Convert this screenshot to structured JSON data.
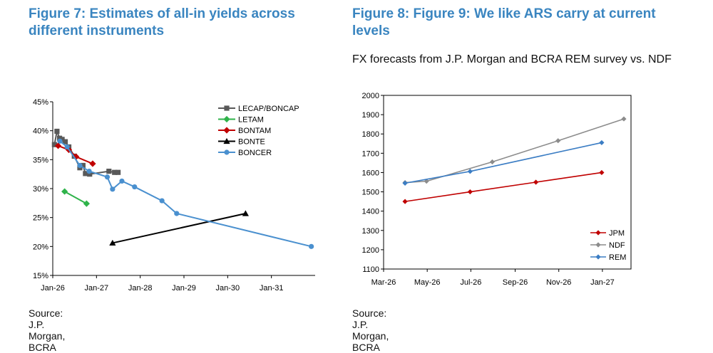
{
  "figures": [
    {
      "title": "Figure 7: Estimates of all-in yields across different instruments",
      "subtitle": "",
      "source": "Source: J.P. Morgan, BCRA"
    },
    {
      "title": "Figure 8: Figure 9: We like ARS carry at current levels",
      "subtitle": "FX forecasts from J.P. Morgan and BCRA REM survey vs. NDF",
      "source": "Source: J.P. Morgan, BCRA"
    }
  ],
  "chart_data": [
    {
      "type": "scatter",
      "title": "",
      "xlabel": "",
      "ylabel": "",
      "x_ticks": [
        "Jan-26",
        "Jan-27",
        "Jan-28",
        "Jan-29",
        "Jan-30",
        "Jan-31"
      ],
      "y_ticks": [
        "15%",
        "20%",
        "25%",
        "30%",
        "35%",
        "40%",
        "45%"
      ],
      "ylim": [
        15,
        45
      ],
      "xlim": [
        "Jan-26",
        "Jan-32"
      ],
      "grid": false,
      "legend_position": "top-right",
      "series": [
        {
          "name": "LECAP/BONCAP",
          "color": "#595959",
          "marker": "square",
          "points": [
            {
              "x": "2026-01-15",
              "y": 37.6
            },
            {
              "x": "2026-02-05",
              "y": 39.9
            },
            {
              "x": "2026-02-27",
              "y": 38.7
            },
            {
              "x": "2026-03-20",
              "y": 38.5
            },
            {
              "x": "2026-04-15",
              "y": 38.1
            },
            {
              "x": "2026-05-15",
              "y": 37.2
            },
            {
              "x": "2026-06-30",
              "y": 35.6
            },
            {
              "x": "2026-08-15",
              "y": 33.6
            },
            {
              "x": "2026-09-10",
              "y": 34.0
            },
            {
              "x": "2026-10-01",
              "y": 32.6
            },
            {
              "x": "2026-11-05",
              "y": 32.5
            },
            {
              "x": "2027-04-15",
              "y": 33.0
            },
            {
              "x": "2027-06-01",
              "y": 32.8
            },
            {
              "x": "2027-06-30",
              "y": 32.8
            }
          ]
        },
        {
          "name": "LETAM",
          "color": "#2fb34a",
          "marker": "diamond",
          "points": [
            {
              "x": "2026-04-10",
              "y": 29.5
            },
            {
              "x": "2026-10-10",
              "y": 27.4
            }
          ]
        },
        {
          "name": "BONTAM",
          "color": "#c00000",
          "marker": "diamond",
          "points": [
            {
              "x": "2026-02-15",
              "y": 37.4
            },
            {
              "x": "2026-05-15",
              "y": 36.7
            },
            {
              "x": "2026-07-15",
              "y": 35.5
            },
            {
              "x": "2026-11-30",
              "y": 34.3
            }
          ]
        },
        {
          "name": "BONTE",
          "color": "#000000",
          "marker": "triangle",
          "points": [
            {
              "x": "2027-05-15",
              "y": 20.6
            },
            {
              "x": "2030-05-30",
              "y": 25.7
            }
          ]
        },
        {
          "name": "BONCER",
          "color": "#4a90cf",
          "marker": "circle",
          "points": [
            {
              "x": "2026-03-01",
              "y": 38.2
            },
            {
              "x": "2026-05-01",
              "y": 37.2
            },
            {
              "x": "2026-08-15",
              "y": 34.0
            },
            {
              "x": "2026-11-01",
              "y": 33.0
            },
            {
              "x": "2027-04-01",
              "y": 32.0
            },
            {
              "x": "2027-05-15",
              "y": 29.9
            },
            {
              "x": "2027-08-01",
              "y": 31.3
            },
            {
              "x": "2027-11-15",
              "y": 30.3
            },
            {
              "x": "2028-07-01",
              "y": 27.9
            },
            {
              "x": "2028-11-01",
              "y": 25.7
            },
            {
              "x": "2031-11-30",
              "y": 20.0
            }
          ]
        }
      ]
    },
    {
      "type": "line",
      "title": "",
      "xlabel": "",
      "ylabel": "",
      "x_ticks": [
        "Mar-26",
        "May-26",
        "Jul-26",
        "Sep-26",
        "Nov-26",
        "Jan-27"
      ],
      "y_ticks": [
        "1100",
        "1200",
        "1300",
        "1400",
        "1500",
        "1600",
        "1700",
        "1800",
        "1900",
        "2000"
      ],
      "ylim": [
        1100,
        2000
      ],
      "xlim": [
        "2026-03-01",
        "2027-02-10"
      ],
      "grid": false,
      "legend_position": "bottom-right",
      "series": [
        {
          "name": "JPM",
          "color": "#c00000",
          "marker": "diamond",
          "points": [
            {
              "x": "2026-03-31",
              "y": 1450
            },
            {
              "x": "2026-06-30",
              "y": 1500
            },
            {
              "x": "2026-09-30",
              "y": 1550
            },
            {
              "x": "2026-12-31",
              "y": 1600
            }
          ]
        },
        {
          "name": "NDF",
          "color": "#8c8c8c",
          "marker": "diamond",
          "points": [
            {
              "x": "2026-03-31",
              "y": 1548
            },
            {
              "x": "2026-04-30",
              "y": 1555
            },
            {
              "x": "2026-07-31",
              "y": 1655
            },
            {
              "x": "2026-10-31",
              "y": 1765
            },
            {
              "x": "2027-01-31",
              "y": 1878
            }
          ]
        },
        {
          "name": "REM",
          "color": "#3b7dc4",
          "marker": "diamond",
          "points": [
            {
              "x": "2026-03-31",
              "y": 1545
            },
            {
              "x": "2026-06-30",
              "y": 1606
            },
            {
              "x": "2026-12-31",
              "y": 1755
            }
          ]
        }
      ]
    }
  ]
}
